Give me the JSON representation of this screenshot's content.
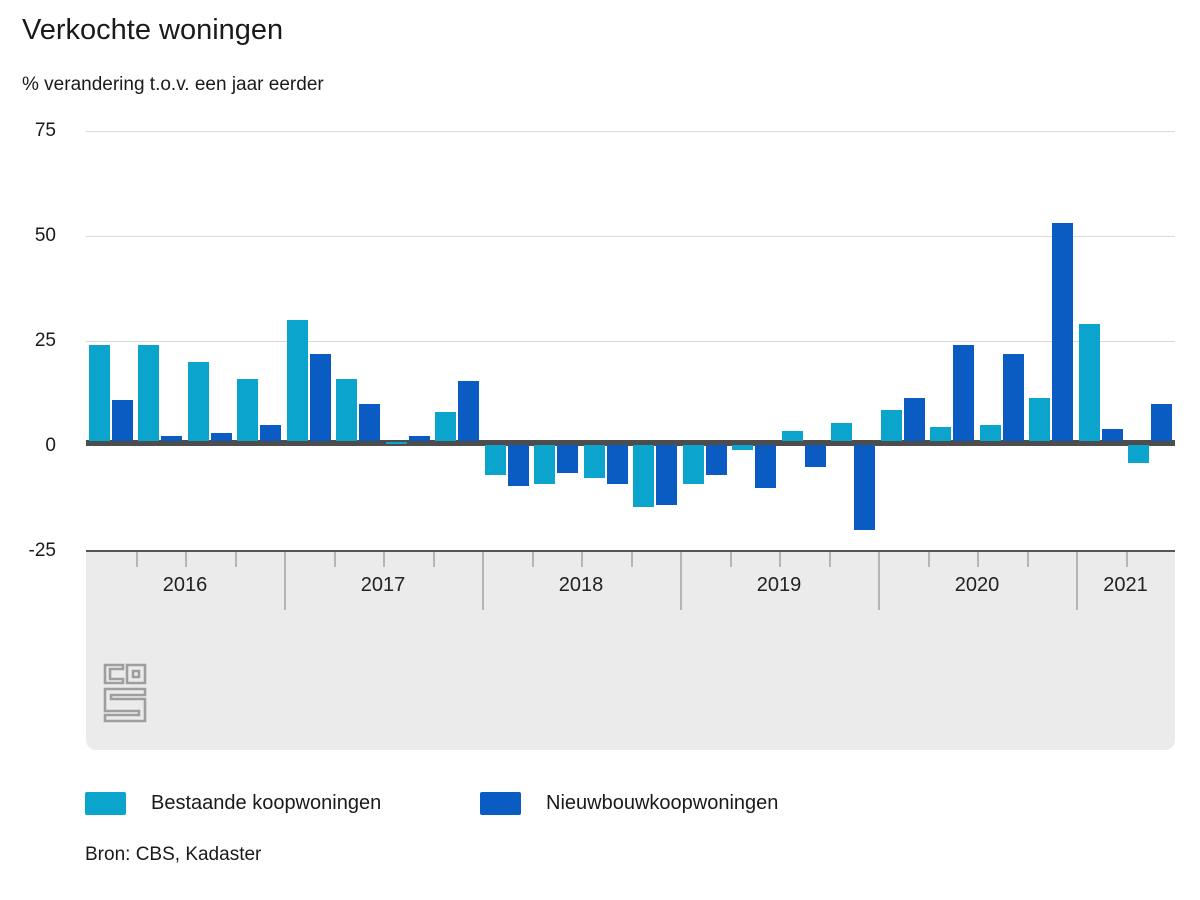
{
  "header": {
    "title": "Verkochte woningen",
    "subtitle": "% verandering t.o.v. een jaar eerder"
  },
  "chart_data": {
    "type": "bar",
    "unit": "% verandering t.o.v. een jaar eerder",
    "categories": [
      "2016 Q1",
      "2016 Q2",
      "2016 Q3",
      "2016 Q4",
      "2017 Q1",
      "2017 Q2",
      "2017 Q3",
      "2017 Q4",
      "2018 Q1",
      "2018 Q2",
      "2018 Q3",
      "2018 Q4",
      "2019 Q1",
      "2019 Q2",
      "2019 Q3",
      "2019 Q4",
      "2020 Q1",
      "2020 Q2",
      "2020 Q3",
      "2020 Q4",
      "2021 Q1",
      "2021 Q2"
    ],
    "series": [
      {
        "name": "Bestaande koopwoningen",
        "color": "#0aa4cc",
        "values": [
          24,
          24,
          20,
          16,
          30,
          16,
          1,
          8,
          -7,
          -9,
          -7.5,
          -14.5,
          -9,
          -1,
          3.5,
          5.5,
          8.5,
          4.5,
          5,
          11.5,
          29,
          -4
        ]
      },
      {
        "name": "Nieuwbouwkoopwoningen",
        "color": "#0a5cc2",
        "values": [
          11,
          2.5,
          3,
          5,
          22,
          10,
          2.5,
          15.5,
          -9.5,
          -6.5,
          -9,
          -14,
          -7,
          -10,
          -5,
          -20,
          11.5,
          24,
          22,
          53,
          4,
          10
        ]
      }
    ],
    "years": [
      {
        "label": "2016",
        "quarters": 4
      },
      {
        "label": "2017",
        "quarters": 4
      },
      {
        "label": "2018",
        "quarters": 4
      },
      {
        "label": "2019",
        "quarters": 4
      },
      {
        "label": "2020",
        "quarters": 4
      },
      {
        "label": "2021",
        "quarters": 2
      }
    ],
    "yticks": [
      75,
      50,
      25,
      0,
      -25
    ],
    "ylim": [
      -25,
      75
    ],
    "grid": "horizontal",
    "legend_position": "bottom"
  },
  "colors": {
    "gridline": "#d9d9d9",
    "zero_line": "#4d4d4d",
    "axis_band": "#ebebeb",
    "band_border": "#55565a",
    "tick": "#b5b5b5",
    "logo": "#9e9e9e"
  },
  "source": {
    "label": "Bron: CBS, Kadaster"
  },
  "logo": {
    "name": "cbs-logo"
  }
}
